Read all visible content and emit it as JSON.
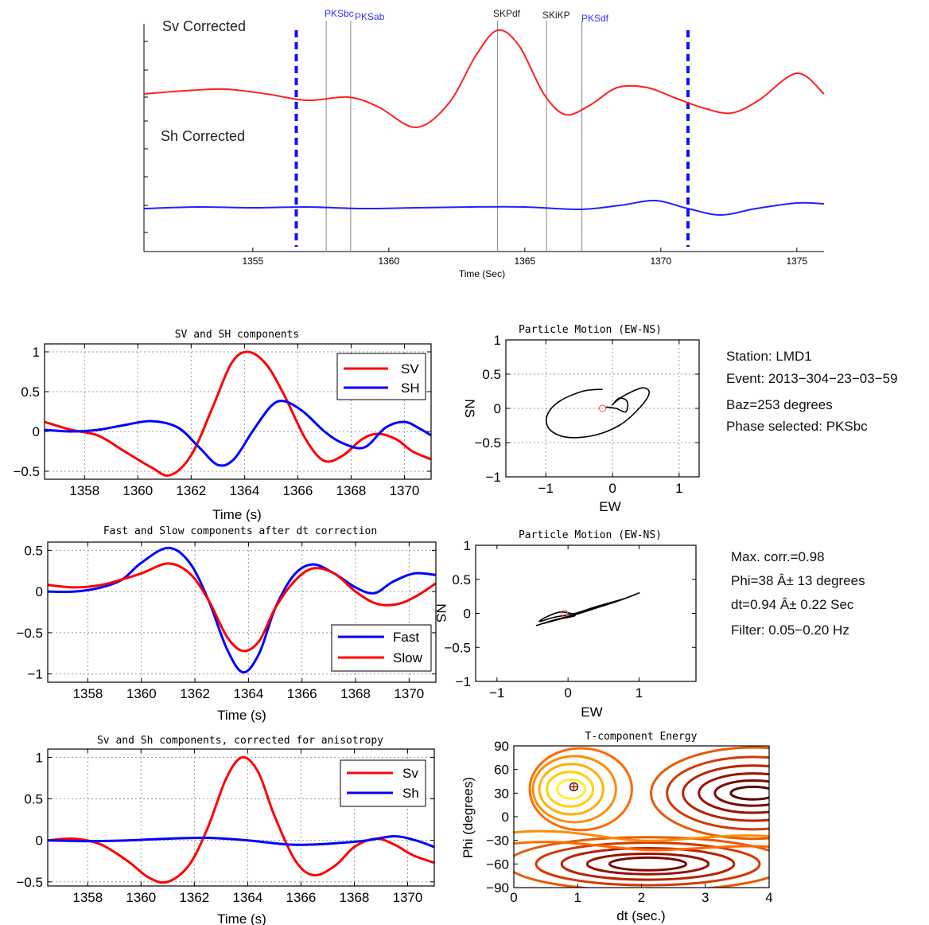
{
  "top_panel": {
    "labels": [
      "Sv Corrected",
      "Sh Corrected"
    ],
    "xlabel": "Time (Sec)",
    "xlim": [
      1351,
      1376
    ],
    "xticks": [
      1355,
      1360,
      1365,
      1370,
      1375
    ],
    "window": [
      1356.6,
      1371.0
    ],
    "phases": [
      {
        "name": "PKSbc",
        "t": 1357.7,
        "color": "#3333ff"
      },
      {
        "name": "PKSab",
        "t": 1358.6,
        "color": "#3333ff"
      },
      {
        "name": "SKPdf",
        "t": 1364.0,
        "color": "#222222"
      },
      {
        "name": "SKiKP",
        "t": 1365.8,
        "color": "#222222"
      },
      {
        "name": "PKSdf",
        "t": 1367.1,
        "color": "#3333ff"
      }
    ],
    "colors": {
      "sv": "#ff2020",
      "sh": "#2020ff",
      "window": "#1010ff"
    }
  },
  "chart_data": [
    {
      "type": "line",
      "title": "SV and SH components",
      "xlabel": "Time (s)",
      "ylabel": "",
      "xlim": [
        1356.5,
        1371
      ],
      "ylim": [
        -0.6,
        1.1
      ],
      "xticks": [
        1358,
        1360,
        1362,
        1364,
        1366,
        1368,
        1370
      ],
      "yticks": [
        -0.5,
        0,
        0.5,
        1
      ],
      "grid": true,
      "legend": "top-right",
      "series": [
        {
          "name": "SV",
          "color": "#ff0000",
          "x": [
            1356.5,
            1357.5,
            1358.5,
            1359.5,
            1360.5,
            1361.2,
            1362,
            1362.8,
            1363.5,
            1364.1,
            1364.8,
            1365.5,
            1366.3,
            1367,
            1367.7,
            1368.4,
            1369,
            1369.7,
            1370.3,
            1371
          ],
          "y": [
            0.12,
            0.02,
            -0.05,
            -0.25,
            -0.45,
            -0.55,
            -0.3,
            0.3,
            0.85,
            1.0,
            0.85,
            0.45,
            -0.1,
            -0.37,
            -0.3,
            -0.1,
            -0.03,
            -0.1,
            -0.25,
            -0.35
          ]
        },
        {
          "name": "SH",
          "color": "#0000ff",
          "x": [
            1356.5,
            1357.5,
            1358.5,
            1359.5,
            1360.5,
            1361.5,
            1362.3,
            1363,
            1363.6,
            1364.3,
            1365,
            1365.5,
            1366.2,
            1367,
            1367.7,
            1368.5,
            1369.3,
            1370,
            1370.6,
            1371
          ],
          "y": [
            0.02,
            0.0,
            0.02,
            0.08,
            0.13,
            0.05,
            -0.2,
            -0.42,
            -0.35,
            0.0,
            0.32,
            0.38,
            0.25,
            0.0,
            -0.15,
            -0.2,
            0.05,
            0.12,
            0.03,
            -0.05
          ]
        }
      ]
    },
    {
      "type": "line",
      "title": "Particle Motion (EW-NS)",
      "xlabel": "EW",
      "ylabel": "NS",
      "xlim": [
        -1.6,
        1.3
      ],
      "ylim": [
        -1,
        1
      ],
      "xticks": [
        -1,
        0,
        1
      ],
      "yticks": [
        -1,
        -0.5,
        0,
        0.5,
        1
      ],
      "grid": true,
      "series": [
        {
          "name": "",
          "color": "#000000",
          "x": [
            -0.15,
            -0.45,
            -0.8,
            -0.98,
            -0.95,
            -0.7,
            -0.3,
            0.1,
            0.4,
            0.55,
            0.45,
            0.2,
            0.05,
            0.0,
            0.1,
            0.22,
            0.2,
            0.05,
            -0.1
          ],
          "y": [
            0.28,
            0.25,
            0.1,
            -0.1,
            -0.3,
            -0.42,
            -0.4,
            -0.25,
            0.0,
            0.22,
            0.3,
            0.2,
            0.1,
            0.05,
            0.15,
            0.1,
            -0.05,
            0.0,
            0.02
          ]
        }
      ],
      "marker": {
        "x": -0.15,
        "y": 0.0,
        "color": "#ff4444"
      }
    },
    {
      "type": "line",
      "title": "Fast and Slow components after dt correction",
      "xlabel": "Time (s)",
      "ylabel": "",
      "xlim": [
        1356.5,
        1371
      ],
      "ylim": [
        -1.1,
        0.6
      ],
      "xticks": [
        1358,
        1360,
        1362,
        1364,
        1366,
        1368,
        1370
      ],
      "yticks": [
        -1,
        -0.5,
        0,
        0.5
      ],
      "grid": true,
      "legend": "bottom-right",
      "series": [
        {
          "name": "Fast",
          "color": "#0000ff",
          "x": [
            1356.5,
            1357.5,
            1358.5,
            1359.3,
            1360,
            1361,
            1361.8,
            1362.5,
            1363.2,
            1363.8,
            1364.4,
            1365,
            1365.7,
            1366.4,
            1367.2,
            1368,
            1368.7,
            1369.4,
            1370.2,
            1371
          ],
          "y": [
            0.0,
            0.0,
            0.05,
            0.15,
            0.35,
            0.53,
            0.35,
            -0.1,
            -0.7,
            -0.98,
            -0.75,
            -0.2,
            0.2,
            0.33,
            0.22,
            0.05,
            -0.02,
            0.12,
            0.22,
            0.2
          ]
        },
        {
          "name": "Slow",
          "color": "#ff0000",
          "x": [
            1356.5,
            1357.5,
            1358.5,
            1359.3,
            1360,
            1361,
            1361.8,
            1362.5,
            1363.2,
            1363.8,
            1364.4,
            1365,
            1365.7,
            1366.4,
            1367.2,
            1368,
            1368.8,
            1369.6,
            1370.3,
            1371
          ],
          "y": [
            0.08,
            0.05,
            0.08,
            0.15,
            0.22,
            0.34,
            0.22,
            -0.1,
            -0.55,
            -0.72,
            -0.6,
            -0.2,
            0.12,
            0.28,
            0.22,
            0.0,
            -0.15,
            -0.15,
            -0.05,
            0.1
          ]
        }
      ]
    },
    {
      "type": "line",
      "title": "Particle Motion (EW-NS)",
      "xlabel": "EW",
      "ylabel": "NS",
      "xlim": [
        -1.3,
        1.8
      ],
      "ylim": [
        -1,
        1
      ],
      "xticks": [
        -1,
        0,
        1
      ],
      "yticks": [
        -1,
        -0.5,
        0,
        0.5,
        1
      ],
      "grid": false,
      "series": [
        {
          "name": "",
          "color": "#000000",
          "x": [
            -0.45,
            -0.2,
            0.1,
            0.4,
            0.7,
            1.0,
            0.8,
            0.4,
            0.1,
            -0.2,
            -0.4,
            -0.3,
            -0.1,
            0.1,
            -0.1,
            -0.35
          ],
          "y": [
            -0.18,
            -0.1,
            -0.02,
            0.08,
            0.18,
            0.3,
            0.22,
            0.1,
            0.0,
            -0.06,
            -0.12,
            -0.05,
            0.02,
            -0.03,
            -0.08,
            -0.15
          ]
        }
      ],
      "marker": {
        "x": -0.05,
        "y": 0.0,
        "color": "#ff4444"
      }
    },
    {
      "type": "line",
      "title": "Sv and Sh components, corrected for anisotropy",
      "xlabel": "Time (s)",
      "ylabel": "",
      "xlim": [
        1356.5,
        1371
      ],
      "ylim": [
        -0.55,
        1.1
      ],
      "xticks": [
        1358,
        1360,
        1362,
        1364,
        1366,
        1368,
        1370
      ],
      "yticks": [
        -0.5,
        0,
        0.5,
        1
      ],
      "grid": true,
      "legend": "top-right",
      "series": [
        {
          "name": "Sv",
          "color": "#ff0000",
          "x": [
            1356.5,
            1357.5,
            1358.5,
            1359.5,
            1360.3,
            1361,
            1361.8,
            1362.5,
            1363.2,
            1363.8,
            1364.4,
            1365,
            1365.8,
            1366.5,
            1367.3,
            1368,
            1368.8,
            1369.5,
            1370.2,
            1371
          ],
          "y": [
            0.0,
            0.02,
            -0.05,
            -0.25,
            -0.45,
            -0.5,
            -0.3,
            0.15,
            0.75,
            1.0,
            0.82,
            0.3,
            -0.25,
            -0.42,
            -0.3,
            -0.08,
            0.02,
            -0.05,
            -0.18,
            -0.27
          ]
        },
        {
          "name": "Sh",
          "color": "#0000ff",
          "x": [
            1356.5,
            1358,
            1359.5,
            1361,
            1362.5,
            1364,
            1365.5,
            1366.5,
            1367.5,
            1368.5,
            1369.5,
            1370.3,
            1371
          ],
          "y": [
            0.0,
            -0.01,
            0.0,
            0.02,
            0.03,
            0.0,
            -0.05,
            -0.05,
            -0.03,
            0.0,
            0.05,
            0.0,
            -0.08
          ]
        }
      ]
    },
    {
      "type": "heatmap",
      "title": "T-component Energy",
      "xlabel": "dt (sec.)",
      "ylabel": "Phi (degrees)",
      "xlim": [
        0,
        4
      ],
      "ylim": [
        -90,
        90
      ],
      "xticks": [
        0,
        1,
        2,
        3,
        4
      ],
      "yticks": [
        -90,
        -60,
        -30,
        0,
        30,
        60,
        90
      ],
      "marker": {
        "x": 0.94,
        "y": 38,
        "color": "#ff0000"
      }
    }
  ],
  "info1": {
    "station": "Station: LMD1",
    "event": "Event: 2013−304−23−03−59",
    "baz": "Baz=253 degrees",
    "phase": "Phase selected: PKSbc"
  },
  "info2": {
    "corr": "Max. corr.=0.98",
    "phi": "Phi=38 Â± 13 degrees",
    "dt": "dt=0.94 Â± 0.22 Sec",
    "filter": "Filter: 0.05−0.20 Hz"
  }
}
